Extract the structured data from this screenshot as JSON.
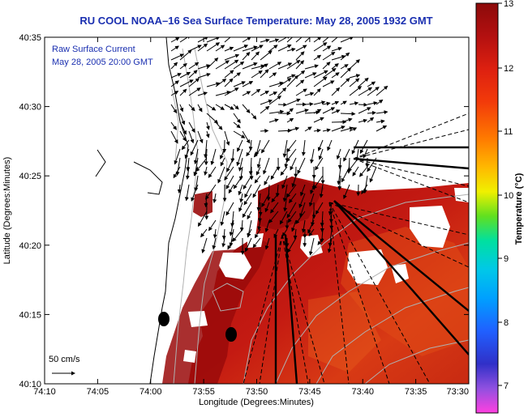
{
  "title": "RU COOL  NOAA–16  Sea Surface Temperature:  May 28, 2005 1932 GMT",
  "legend": {
    "line1": "Raw Surface Current",
    "line2": "May 28, 2005 20:00 GMT"
  },
  "scale": {
    "label": "50 cm/s"
  },
  "axes": {
    "xlabel": "Longitude (Degrees:Minutes)",
    "ylabel": "Latitude (Degrees:Minutes)",
    "xticks": [
      "74:10",
      "74:05",
      "74:00",
      "73:55",
      "73:50",
      "73:45",
      "73:40",
      "73:35",
      "73:30"
    ],
    "yticks": [
      "40:35",
      "40:30",
      "40:25",
      "40:20",
      "40:15",
      "40:10"
    ]
  },
  "colorbar": {
    "title": "Temperature (°C)",
    "ticks": [
      "13",
      "12",
      "11",
      "10",
      "9",
      "8",
      "7"
    ],
    "colors": [
      "#9a0a0a",
      "#cc1a10",
      "#ee3010",
      "#ff6a00",
      "#ffb000",
      "#e8f000",
      "#50e020",
      "#00e0b0",
      "#00b0ff",
      "#2060ff",
      "#3030d0",
      "#9050e0",
      "#ff40e0"
    ]
  }
}
